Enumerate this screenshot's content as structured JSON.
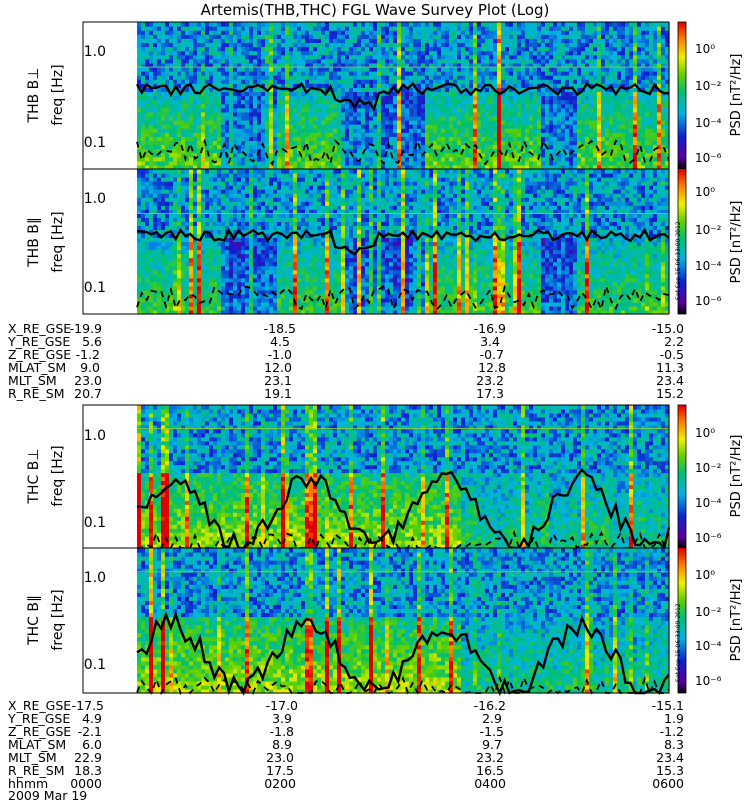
{
  "title": "Artemis(THB,THC) FGL Wave Survey Plot (Log)",
  "colorbar": {
    "label": "PSD [nT²/Hz]",
    "ticks": [
      "10⁰",
      "10⁻²",
      "10⁻⁴",
      "10⁻⁶"
    ],
    "log_range": [
      -7,
      1
    ]
  },
  "side_stamp": "Sat Sep 15 06:33:09 2012",
  "chart_data": [
    {
      "type": "heatmap",
      "probe": "THB",
      "component": "B⊥",
      "ylabel": "freq [Hz]",
      "panel_label": "THB B⊥",
      "y_scale": "log",
      "y_ticks": [
        "1.0",
        "0.1"
      ],
      "y_tick_values": [
        1.0,
        0.1
      ],
      "ylim": [
        0.05,
        1.8
      ],
      "x_range": [
        "00:40",
        "06:00"
      ],
      "overlay_lines": [
        "solid",
        "dashed"
      ],
      "reference_line_hz": 0.6
    },
    {
      "type": "heatmap",
      "probe": "THB",
      "component": "B∥",
      "ylabel": "freq [Hz]",
      "panel_label": "THB B∥",
      "y_scale": "log",
      "y_ticks": [
        "1.0",
        "0.1"
      ],
      "y_tick_values": [
        1.0,
        0.1
      ],
      "ylim": [
        0.05,
        1.8
      ],
      "x_range": [
        "00:40",
        "06:00"
      ],
      "overlay_lines": [
        "solid",
        "dashed"
      ],
      "reference_line_hz": 0.6
    },
    {
      "type": "heatmap",
      "probe": "THC",
      "component": "B⊥",
      "ylabel": "freq [Hz]",
      "panel_label": "THC B⊥",
      "y_scale": "log",
      "y_ticks": [
        "1.0",
        "0.1"
      ],
      "y_tick_values": [
        1.0,
        0.1
      ],
      "ylim": [
        0.05,
        1.8
      ],
      "x_range": [
        "00:00",
        "06:00"
      ],
      "overlay_lines": [
        "solid",
        "dashed"
      ],
      "reference_line_hz": 1.0
    },
    {
      "type": "heatmap",
      "probe": "THC",
      "component": "B∥",
      "ylabel": "freq [Hz]",
      "panel_label": "THC B∥",
      "y_scale": "log",
      "y_ticks": [
        "1.0",
        "0.1"
      ],
      "y_tick_values": [
        1.0,
        0.1
      ],
      "ylim": [
        0.05,
        1.8
      ],
      "x_range": [
        "00:00",
        "06:00"
      ],
      "overlay_lines": [
        "solid",
        "dashed"
      ],
      "reference_line_hz": 1.0
    }
  ],
  "thb_ephemeris": {
    "rows": [
      {
        "label": "X_RE_GSE",
        "values": [
          "-19.9",
          "-18.5",
          "-16.9",
          "-15.0"
        ]
      },
      {
        "label": "Y_RE_GSE",
        "values": [
          "5.6",
          "4.5",
          "3.4",
          "2.2"
        ]
      },
      {
        "label": "Z_RE_GSE",
        "values": [
          "-1.2",
          "-1.0",
          "-0.7",
          "-0.5"
        ]
      },
      {
        "label": "MLAT_SM",
        "values": [
          "9.0",
          "12.0",
          "12.8",
          "11.3"
        ]
      },
      {
        "label": "MLT_SM",
        "values": [
          "23.0",
          "23.1",
          "23.2",
          "23.4"
        ]
      },
      {
        "label": "R_RE_SM",
        "values": [
          "20.7",
          "19.1",
          "17.3",
          "15.2"
        ]
      }
    ]
  },
  "thc_ephemeris": {
    "rows": [
      {
        "label": "X_RE_GSE",
        "values": [
          "-17.5",
          "-17.0",
          "-16.2",
          "-15.1"
        ]
      },
      {
        "label": "Y_RE_GSE",
        "values": [
          "4.9",
          "3.9",
          "2.9",
          "1.9"
        ]
      },
      {
        "label": "Z_RE_GSE",
        "values": [
          "-2.1",
          "-1.8",
          "-1.5",
          "-1.2"
        ]
      },
      {
        "label": "MLAT_SM",
        "values": [
          "6.0",
          "8.9",
          "9.7",
          "8.3"
        ]
      },
      {
        "label": "MLT_SM",
        "values": [
          "22.9",
          "23.0",
          "23.2",
          "23.4"
        ]
      },
      {
        "label": "R_RE_SM",
        "values": [
          "18.3",
          "17.5",
          "16.5",
          "15.3"
        ]
      },
      {
        "label": "hhmm",
        "values": [
          "0000",
          "0200",
          "0400",
          "0600"
        ]
      }
    ]
  },
  "date_label": "2009 Mar 19"
}
